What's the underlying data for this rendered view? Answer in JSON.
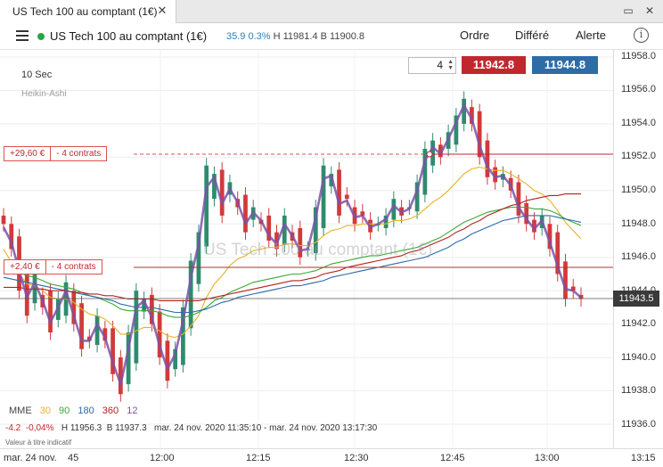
{
  "tab": {
    "title": "US Tech 100 au comptant (1€)"
  },
  "toolbar": {
    "instrument": "US Tech 100 au comptant (1€)",
    "change": "35.9",
    "change_pct": "0.3%",
    "high": "H 11981.4",
    "low": "B 11900.8",
    "menu_order": "Ordre",
    "menu_deferred": "Différé",
    "menu_alert": "Alerte"
  },
  "chart_header": {
    "interval": "10 Sec",
    "style": "Heikin-Ashi"
  },
  "trade": {
    "quantity": "4",
    "sell_price": "11942.8",
    "buy_price": "11944.8"
  },
  "positions": [
    {
      "pl": "+29,60 €",
      "contracts": "- 4 contrats"
    },
    {
      "pl": "+2,40 €",
      "contracts": "- 4 contrats"
    }
  ],
  "watermark": "US Tech 100 au comptant (1€)",
  "price_axis": {
    "ticks": [
      "11958.0",
      "11956.0",
      "11954.0",
      "11952.0",
      "11950.0",
      "11948.0",
      "11946.0",
      "11944.0",
      "11942.0",
      "11940.0",
      "11938.0",
      "11936.0"
    ],
    "current": "11943.5"
  },
  "time_axis": {
    "ticks": [
      "mar. 24 nov.",
      "45",
      "12:00",
      "12:15",
      "12:30",
      "12:45",
      "13:00",
      "13:15"
    ]
  },
  "legend": {
    "label": "MME",
    "periods": [
      "30",
      "90",
      "180",
      "360",
      "12"
    ],
    "colors": {
      "p30": "#e8b224",
      "p90": "#3aaa35",
      "p180": "#2c6aa8",
      "p360": "#b22222",
      "p12": "#7b52a8",
      "sell": "#c0282d",
      "buy": "#2e6ca6"
    }
  },
  "ohlc": {
    "change": "-4.2",
    "change_pct": "-0,04%",
    "high": "H 11956.3",
    "low": "B 11937.3",
    "range": "mar. 24 nov. 2020 11:35:10 - mar. 24 nov. 2020 13:17:30"
  },
  "disclaimer": "Valeur à titre indicatif",
  "chart_data": {
    "type": "line",
    "y_axis_ticks": [
      11958,
      11956,
      11954,
      11952,
      11950,
      11948,
      11946,
      11944,
      11942,
      11940,
      11938,
      11936
    ],
    "ylim": [
      11935.5,
      11958.5
    ],
    "x_axis_ticks": [
      "mar. 24 nov.",
      "45",
      "12:00",
      "12:15",
      "12:30",
      "12:45",
      "13:00",
      "13:15"
    ],
    "candle_close": [
      11948.0,
      11946.5,
      11944.0,
      11942.5,
      11945.0,
      11943.0,
      11941.5,
      11943.5,
      11944.5,
      11942.0,
      11940.5,
      11941.0,
      11942.5,
      11941.0,
      11939.0,
      11937.8,
      11941.5,
      11944.0,
      11943.5,
      11942.0,
      11940.0,
      11938.6,
      11940.5,
      11943.0,
      11945.8,
      11947.5,
      11951.5,
      11951.0,
      11948.5,
      11950.5,
      11949.0,
      11947.5,
      11949.0,
      11948.0,
      11947.0,
      11946.5,
      11948.5,
      11947.0,
      11946.0,
      11946.5,
      11949.0,
      11951.5,
      11951.0,
      11948.5,
      11949.5,
      11948.0,
      11948.5,
      11947.5,
      11948.0,
      11948.5,
      11949.5,
      11948.5,
      11949.0,
      11950.5,
      11952.5,
      11953.0,
      11952.0,
      11953.5,
      11954.5,
      11955.5,
      11954.0,
      11952.0,
      11950.8,
      11950.5,
      11951.0,
      11950.0,
      11948.5,
      11948.0,
      11947.5,
      11948.5,
      11946.5,
      11945.0,
      11943.5,
      11944.0,
      11943.5
    ],
    "series": [
      {
        "name": "30",
        "values": [
          11946.5,
          11945.7,
          11945.0,
          11944.4,
          11944.3,
          11944.0,
          11943.6,
          11943.5,
          11943.5,
          11943.3,
          11942.9,
          11942.6,
          11942.5,
          11942.3,
          11941.9,
          11941.4,
          11941.4,
          11941.6,
          11941.8,
          11941.8,
          11941.6,
          11941.3,
          11941.2,
          11941.4,
          11941.9,
          11942.5,
          11943.6,
          11944.4,
          11944.9,
          11945.5,
          11945.9,
          11946.1,
          11946.4,
          11946.5,
          11946.6,
          11946.6,
          11946.8,
          11946.8,
          11946.7,
          11946.7,
          11946.9,
          11947.3,
          11947.6,
          11947.7,
          11947.9,
          11947.9,
          11948.0,
          11948.0,
          11948.0,
          11948.0,
          11948.2,
          11948.2,
          11948.3,
          11948.5,
          11948.9,
          11949.3,
          11949.6,
          11950.0,
          11950.5,
          11951.0,
          11951.3,
          11951.4,
          11951.3,
          11951.2,
          11951.2,
          11951.0,
          11950.7,
          11950.4,
          11950.0,
          11949.8,
          11949.4,
          11948.8,
          11948.1,
          11947.6,
          11947.1
        ]
      },
      {
        "name": "90",
        "values": [
          11945.5,
          11945.3,
          11945.1,
          11944.9,
          11944.8,
          11944.6,
          11944.4,
          11944.3,
          11944.2,
          11944.1,
          11943.9,
          11943.7,
          11943.6,
          11943.4,
          11943.2,
          11942.9,
          11942.8,
          11942.8,
          11942.8,
          11942.8,
          11942.7,
          11942.5,
          11942.4,
          11942.4,
          11942.5,
          11942.7,
          11943.0,
          11943.4,
          11943.6,
          11943.9,
          11944.1,
          11944.3,
          11944.5,
          11944.6,
          11944.7,
          11944.8,
          11944.9,
          11945.0,
          11945.0,
          11945.1,
          11945.2,
          11945.4,
          11945.6,
          11945.7,
          11945.8,
          11945.9,
          11946.0,
          11946.1,
          11946.1,
          11946.2,
          11946.3,
          11946.4,
          11946.5,
          11946.6,
          11946.8,
          11947.0,
          11947.2,
          11947.5,
          11947.8,
          11948.1,
          11948.3,
          11948.5,
          11948.7,
          11948.8,
          11948.9,
          11949.0,
          11949.0,
          11949.0,
          11948.9,
          11948.9,
          11948.8,
          11948.6,
          11948.3,
          11948.1,
          11947.9
        ]
      },
      {
        "name": "180",
        "values": [
          11944.8,
          11944.7,
          11944.6,
          11944.5,
          11944.4,
          11944.3,
          11944.2,
          11944.1,
          11944.0,
          11943.9,
          11943.8,
          11943.7,
          11943.6,
          11943.5,
          11943.4,
          11943.2,
          11943.1,
          11943.0,
          11943.0,
          11943.0,
          11942.9,
          11942.8,
          11942.7,
          11942.7,
          11942.7,
          11942.8,
          11942.9,
          11943.1,
          11943.3,
          11943.4,
          11943.6,
          11943.7,
          11943.8,
          11943.9,
          11944.0,
          11944.1,
          11944.2,
          11944.3,
          11944.3,
          11944.4,
          11944.5,
          11944.6,
          11944.8,
          11944.9,
          11945.0,
          11945.1,
          11945.2,
          11945.3,
          11945.4,
          11945.5,
          11945.6,
          11945.7,
          11945.8,
          11945.9,
          11946.0,
          11946.2,
          11946.4,
          11946.6,
          11946.9,
          11947.1,
          11947.4,
          11947.6,
          11947.8,
          11948.0,
          11948.2,
          11948.3,
          11948.4,
          11948.5,
          11948.5,
          11948.5,
          11948.5,
          11948.4,
          11948.3,
          11948.2,
          11948.1
        ]
      },
      {
        "name": "360",
        "values": [
          11944.2,
          11944.2,
          11944.2,
          11944.1,
          11944.1,
          11944.1,
          11944.0,
          11944.0,
          11944.0,
          11943.9,
          11943.9,
          11943.8,
          11943.8,
          11943.7,
          11943.7,
          11943.6,
          11943.5,
          11943.5,
          11943.5,
          11943.5,
          11943.4,
          11943.4,
          11943.4,
          11943.4,
          11943.4,
          11943.4,
          11943.5,
          11943.6,
          11943.7,
          11943.8,
          11943.9,
          11944.0,
          11944.1,
          11944.2,
          11944.3,
          11944.4,
          11944.5,
          11944.6,
          11944.6,
          11944.7,
          11944.8,
          11945.0,
          11945.1,
          11945.2,
          11945.4,
          11945.5,
          11945.6,
          11945.7,
          11945.8,
          11945.9,
          11946.0,
          11946.1,
          11946.3,
          11946.4,
          11946.6,
          11946.8,
          11947.0,
          11947.2,
          11947.5,
          11947.7,
          11948.0,
          11948.2,
          11948.5,
          11948.7,
          11948.9,
          11949.1,
          11949.2,
          11949.4,
          11949.5,
          11949.6,
          11949.7,
          11949.7,
          11949.8,
          11949.8,
          11949.8
        ]
      },
      {
        "name": "12",
        "values": [
          11947.8,
          11946.9,
          11945.2,
          11943.6,
          11944.5,
          11943.4,
          11942.1,
          11943.0,
          11944.0,
          11942.5,
          11941.0,
          11941.0,
          11942.0,
          11941.2,
          11939.7,
          11938.4,
          11940.5,
          11943.0,
          11943.4,
          11942.4,
          11940.7,
          11939.3,
          11940.2,
          11942.2,
          11944.8,
          11946.8,
          11950.2,
          11950.8,
          11949.2,
          11950.1,
          11949.3,
          11948.0,
          11948.7,
          11948.2,
          11947.3,
          11946.8,
          11948.0,
          11947.3,
          11946.4,
          11946.5,
          11948.4,
          11950.7,
          11950.9,
          11949.2,
          11949.4,
          11948.4,
          11948.5,
          11947.8,
          11948.0,
          11948.3,
          11949.1,
          11948.7,
          11948.9,
          11950.0,
          11951.8,
          11952.6,
          11952.2,
          11953.1,
          11954.1,
          11955.1,
          11954.3,
          11952.7,
          11951.4,
          11950.8,
          11950.9,
          11950.3,
          11949.0,
          11948.3,
          11947.7,
          11948.2,
          11946.9,
          11945.5,
          11944.1,
          11944.0,
          11943.6
        ]
      }
    ]
  }
}
